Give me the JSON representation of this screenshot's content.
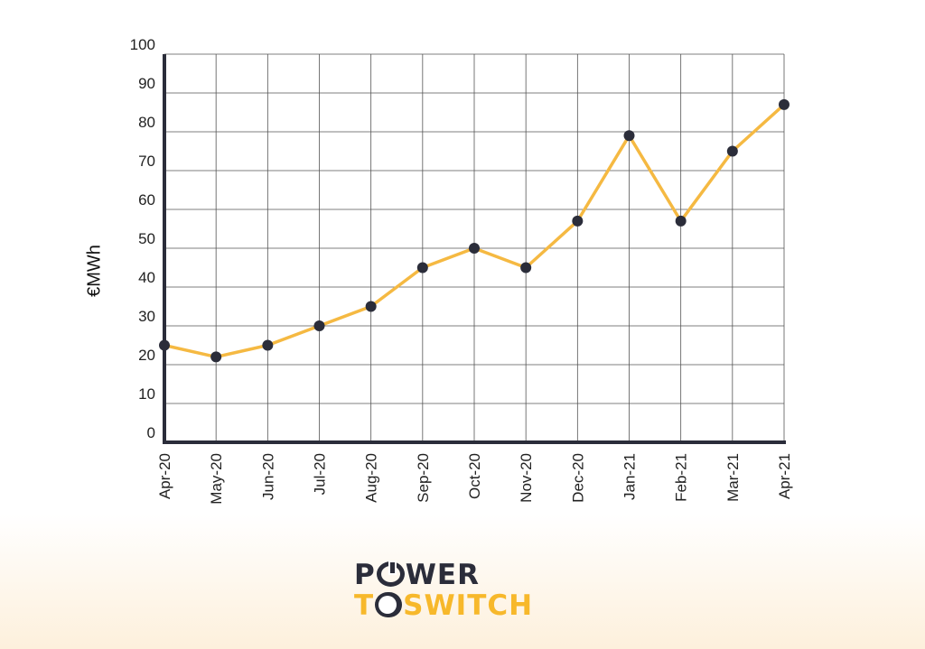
{
  "chart_data": {
    "type": "line",
    "title": "",
    "xlabel": "",
    "ylabel": "€MWh",
    "ylim": [
      0,
      100
    ],
    "yticks": [
      0,
      10,
      20,
      30,
      40,
      50,
      60,
      70,
      80,
      90,
      100
    ],
    "grid": true,
    "legend": "none",
    "categories": [
      "Apr-20",
      "May-20",
      "Jun-20",
      "Jul-20",
      "Aug-20",
      "Sep-20",
      "Oct-20",
      "Nov-20",
      "Dec-20",
      "Jan-21",
      "Feb-21",
      "Mar-21",
      "Apr-21"
    ],
    "series": [
      {
        "values": [
          25,
          22,
          25,
          30,
          35,
          45,
          50,
          45,
          57,
          79,
          57,
          75,
          87
        ],
        "line_color": "#f5b942",
        "marker_color": "#2b2d3a"
      }
    ]
  },
  "logo": {
    "line1_start": "P",
    "line1_end": "WER",
    "line2_start": "T",
    "line2_end": "SWITCH"
  },
  "colors": {
    "axis": "#2b2d3a",
    "grid": "#555555",
    "accent": "#f7b82b"
  }
}
